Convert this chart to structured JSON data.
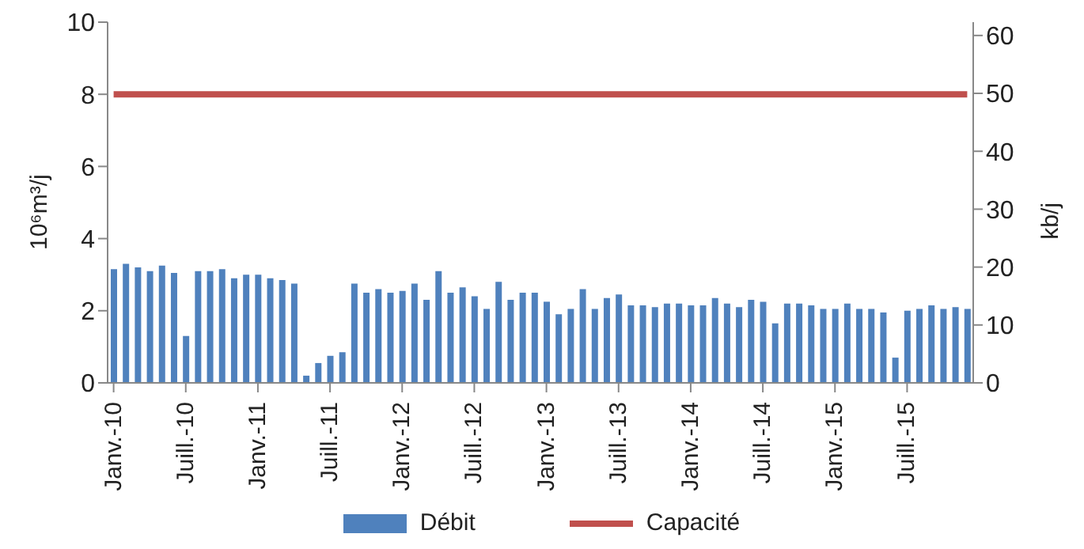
{
  "chart_data": {
    "type": "bar",
    "ylabel": "10⁶m³/j",
    "y2label": "kb/j",
    "categories": [
      "Janv.-10",
      null,
      null,
      null,
      null,
      null,
      "Juill.-10",
      null,
      null,
      null,
      null,
      null,
      "Janv.-11",
      null,
      null,
      null,
      null,
      null,
      "Juill.-11",
      null,
      null,
      null,
      null,
      null,
      "Janv.-12",
      null,
      null,
      null,
      null,
      null,
      "Juill.-12",
      null,
      null,
      null,
      null,
      null,
      "Janv.-13",
      null,
      null,
      null,
      null,
      null,
      "Juill.-13",
      null,
      null,
      null,
      null,
      null,
      "Janv.-14",
      null,
      null,
      null,
      null,
      null,
      "Juill.-14",
      null,
      null,
      null,
      null,
      null,
      "Janv.-15",
      null,
      null,
      null,
      null,
      null,
      "Juill.-15",
      null,
      null,
      null,
      null,
      null
    ],
    "series": [
      {
        "name": "Débit",
        "color": "#4f81bd",
        "values": [
          3.15,
          3.3,
          3.2,
          3.1,
          3.25,
          3.05,
          1.3,
          3.1,
          3.1,
          3.15,
          2.9,
          3.0,
          3.0,
          2.9,
          2.85,
          2.75,
          0.2,
          0.55,
          0.75,
          0.85,
          2.75,
          2.5,
          2.6,
          2.5,
          2.55,
          2.75,
          2.3,
          3.1,
          2.5,
          2.65,
          2.4,
          2.05,
          2.8,
          2.3,
          2.5,
          2.5,
          2.25,
          1.9,
          2.05,
          2.6,
          2.05,
          2.35,
          2.45,
          2.15,
          2.15,
          2.1,
          2.2,
          2.2,
          2.15,
          2.15,
          2.35,
          2.2,
          2.1,
          2.3,
          2.25,
          1.65,
          2.2,
          2.2,
          2.15,
          2.05,
          2.05,
          2.2,
          2.05,
          2.05,
          1.95,
          0.7,
          2.0,
          2.05,
          2.15,
          2.05,
          2.1,
          2.05
        ]
      },
      {
        "name": "Capacité",
        "type": "line",
        "color": "#c0504d",
        "values": [
          8,
          8,
          8,
          8,
          8,
          8,
          8,
          8,
          8,
          8,
          8,
          8,
          8,
          8,
          8,
          8,
          8,
          8,
          8,
          8,
          8,
          8,
          8,
          8,
          8,
          8,
          8,
          8,
          8,
          8,
          8,
          8,
          8,
          8,
          8,
          8,
          8,
          8,
          8,
          8,
          8,
          8,
          8,
          8,
          8,
          8,
          8,
          8,
          8,
          8,
          8,
          8,
          8,
          8,
          8,
          8,
          8,
          8,
          8,
          8,
          8,
          8,
          8,
          8,
          8,
          8,
          8,
          8,
          8,
          8,
          8,
          8
        ]
      }
    ],
    "ylim": [
      0,
      10
    ],
    "yticks": [
      0,
      2,
      4,
      6,
      8,
      10
    ],
    "y2lim": [
      0,
      62.3
    ],
    "y2ticks": [
      0,
      10,
      20,
      30,
      40,
      50,
      60
    ],
    "grid": false,
    "legend": "bottom",
    "marker": "none"
  }
}
